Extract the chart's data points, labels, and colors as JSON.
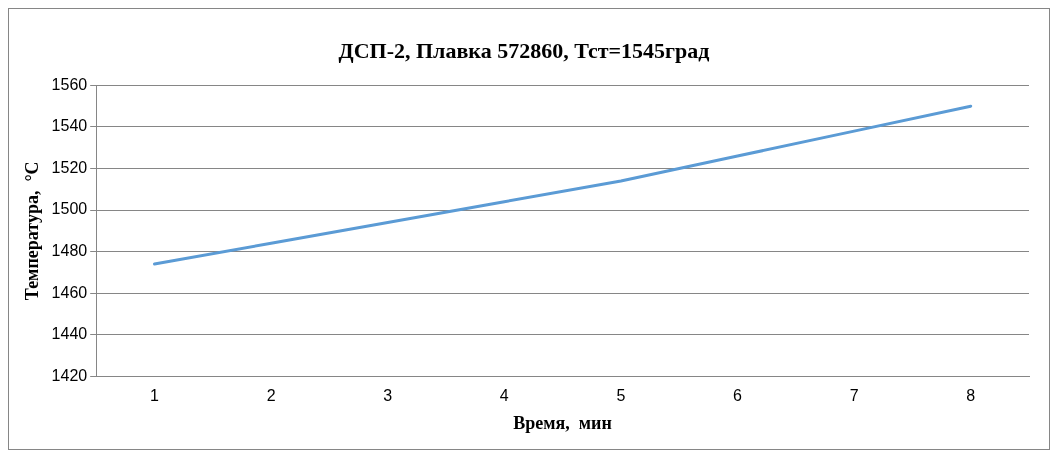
{
  "chart_data": {
    "type": "line",
    "title": "ДСП-2, Плавка 572860, Тст=1545град",
    "xlabel": "Время,  мин",
    "ylabel": "Температура,  °С",
    "categories": [
      "1",
      "2",
      "3",
      "4",
      "5",
      "6",
      "7",
      "8"
    ],
    "series": [
      {
        "color": "#5b9bd5",
        "values": [
          1474,
          1484,
          1494,
          1504,
          1514,
          1526,
          1538,
          1550
        ]
      }
    ],
    "ylim": [
      1420,
      1560
    ],
    "yticks": [
      1420,
      1440,
      1460,
      1480,
      1500,
      1520,
      1540,
      1560
    ],
    "grid": "y",
    "legend": false,
    "marker": "none"
  }
}
